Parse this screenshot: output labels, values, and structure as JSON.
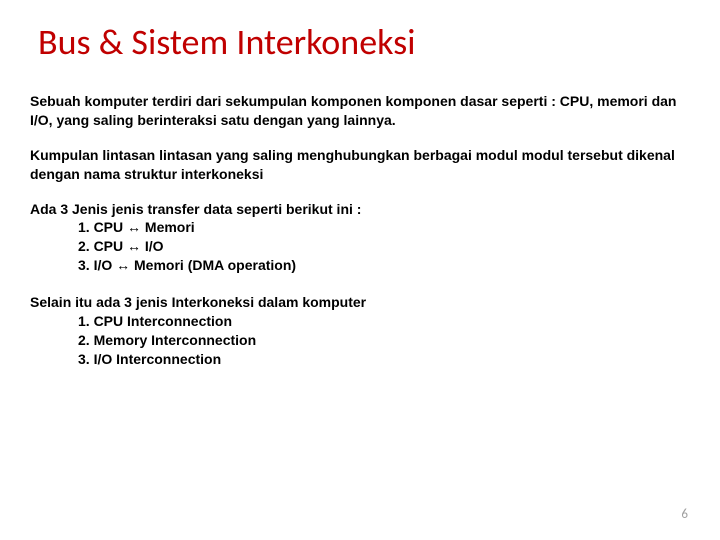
{
  "title": "Bus & Sistem Interkoneksi",
  "para1": "Sebuah komputer terdiri dari sekumpulan komponen komponen dasar seperti : CPU, memori dan I/O,  yang saling berinteraksi satu dengan yang lainnya.",
  "para2": "Kumpulan lintasan lintasan yang saling menghubungkan berbagai modul modul tersebut dikenal dengan nama struktur interkoneksi",
  "transfer": {
    "heading": "Ada 3 Jenis  jenis transfer data seperti berikut ini :",
    "items": [
      "1. CPU ↔ Memori",
      "2. CPU ↔ I/O",
      "3. I/O ↔ Memori (DMA operation)"
    ]
  },
  "interkon": {
    "heading": "Selain itu ada 3 jenis Interkoneksi dalam komputer",
    "items": [
      "1. CPU Interconnection",
      "2. Memory Interconnection",
      "3. I/O Interconnection"
    ]
  },
  "pageNumber": "6",
  "colors": {
    "title": "#c00000",
    "text": "#000000",
    "pageNum": "#a0a0a0",
    "background": "#ffffff"
  },
  "fonts": {
    "title_size": 36,
    "body_size": 14,
    "body_weight": "bold"
  }
}
